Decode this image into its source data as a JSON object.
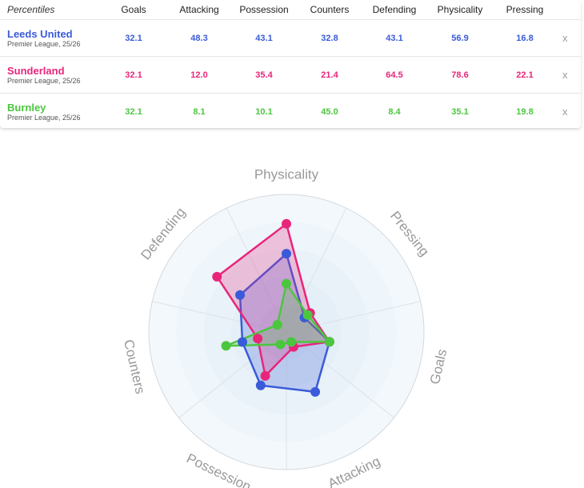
{
  "table": {
    "header_label": "Percentiles",
    "columns": [
      "Goals",
      "Attacking",
      "Possession",
      "Counters",
      "Defending",
      "Physicality",
      "Pressing"
    ],
    "rows": [
      {
        "team": "Leeds United",
        "league": "Premier League, 25/26",
        "color": "#3a5bd9",
        "values": [
          "32.1",
          "48.3",
          "43.1",
          "32.8",
          "43.1",
          "56.9",
          "16.8"
        ],
        "remove": "x"
      },
      {
        "team": "Sunderland",
        "league": "Premier League, 25/26",
        "color": "#e8257a",
        "values": [
          "32.1",
          "12.0",
          "35.4",
          "21.4",
          "64.5",
          "78.6",
          "22.1"
        ],
        "remove": "x"
      },
      {
        "team": "Burnley",
        "league": "Premier League, 25/26",
        "color": "#4cc63f",
        "values": [
          "32.1",
          "8.1",
          "10.1",
          "45.0",
          "8.4",
          "35.1",
          "19.8"
        ],
        "remove": "x"
      }
    ]
  },
  "chart_data": {
    "type": "radar",
    "axes": [
      "Physicality",
      "Pressing",
      "Goals",
      "Attacking",
      "Possession",
      "Counters",
      "Defending"
    ],
    "range": [
      0,
      100
    ],
    "series": [
      {
        "name": "Leeds United",
        "color": "#3a5bd9",
        "values": [
          56.9,
          16.8,
          32.1,
          48.3,
          43.1,
          32.8,
          43.1
        ]
      },
      {
        "name": "Sunderland",
        "color": "#e8257a",
        "values": [
          78.6,
          22.1,
          32.1,
          12.0,
          35.4,
          21.4,
          64.5
        ]
      },
      {
        "name": "Burnley",
        "color": "#4cc63f",
        "values": [
          35.1,
          19.8,
          32.1,
          8.1,
          10.1,
          45.0,
          8.4
        ]
      }
    ],
    "grid": true
  }
}
